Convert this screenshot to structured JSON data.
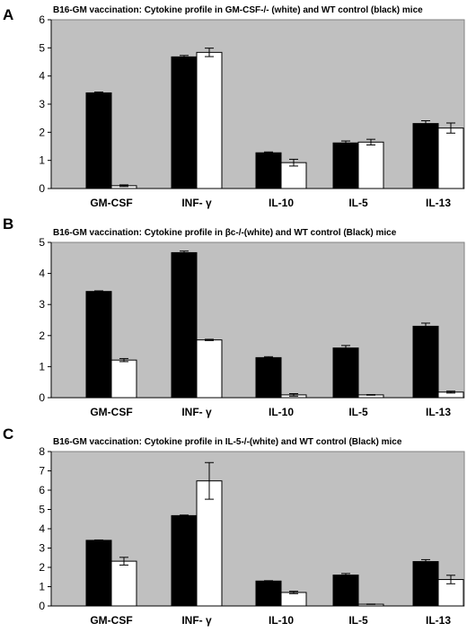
{
  "chart_data": [
    {
      "type": "bar",
      "panel": "A",
      "title": "B16-GM  vaccination: Cytokine profile in GM-CSF-/- (white) and WT control (black) mice",
      "categories": [
        "GM-CSF",
        "INF- γ",
        "IL-10",
        "IL-5",
        "IL-13"
      ],
      "ylim": [
        0,
        6
      ],
      "yticks": [
        0,
        1,
        2,
        3,
        4,
        5,
        6
      ],
      "grid": false,
      "plot_background": "#c0c0c0",
      "series": [
        {
          "color": "#000000",
          "values": [
            3.4,
            4.68,
            1.27,
            1.62,
            2.31
          ],
          "errors": [
            0.03,
            0.05,
            0.03,
            0.07,
            0.1
          ]
        },
        {
          "color": "#ffffff",
          "values": [
            0.1,
            4.84,
            0.92,
            1.65,
            2.15
          ],
          "errors": [
            0.03,
            0.15,
            0.12,
            0.1,
            0.18
          ]
        }
      ]
    },
    {
      "type": "bar",
      "panel": "B",
      "title": "B16-GM vaccination: Cytokine profile in βc-/-(white) and WT control (Black) mice",
      "categories": [
        "GM-CSF",
        "INF- γ",
        "IL-10",
        "IL-5",
        "IL-13"
      ],
      "ylim": [
        0,
        5
      ],
      "yticks": [
        0,
        1,
        2,
        3,
        4,
        5
      ],
      "grid": false,
      "plot_background": "#c0c0c0",
      "series": [
        {
          "color": "#000000",
          "values": [
            3.42,
            4.67,
            1.29,
            1.6,
            2.3
          ],
          "errors": [
            0.02,
            0.05,
            0.03,
            0.08,
            0.1
          ]
        },
        {
          "color": "#ffffff",
          "values": [
            1.21,
            1.86,
            0.09,
            0.09,
            0.18
          ],
          "errors": [
            0.05,
            0.02,
            0.04,
            0.01,
            0.03
          ]
        }
      ]
    },
    {
      "type": "bar",
      "panel": "C",
      "title": "B16-GM vaccination: Cytokine profile in IL-5-/-(white) and WT control (Black) mice",
      "categories": [
        "GM-CSF",
        "INF- γ",
        "IL-10",
        "IL-5",
        "IL-13"
      ],
      "ylim": [
        0,
        8
      ],
      "yticks": [
        0,
        1,
        2,
        3,
        4,
        5,
        6,
        7,
        8
      ],
      "grid": false,
      "plot_background": "#c0c0c0",
      "series": [
        {
          "color": "#000000",
          "values": [
            3.4,
            4.68,
            1.29,
            1.6,
            2.3
          ],
          "errors": [
            0.02,
            0.03,
            0.02,
            0.08,
            0.1
          ]
        },
        {
          "color": "#ffffff",
          "values": [
            2.32,
            6.48,
            0.7,
            0.09,
            1.37
          ],
          "errors": [
            0.2,
            0.95,
            0.06,
            0.01,
            0.22
          ]
        }
      ]
    }
  ]
}
